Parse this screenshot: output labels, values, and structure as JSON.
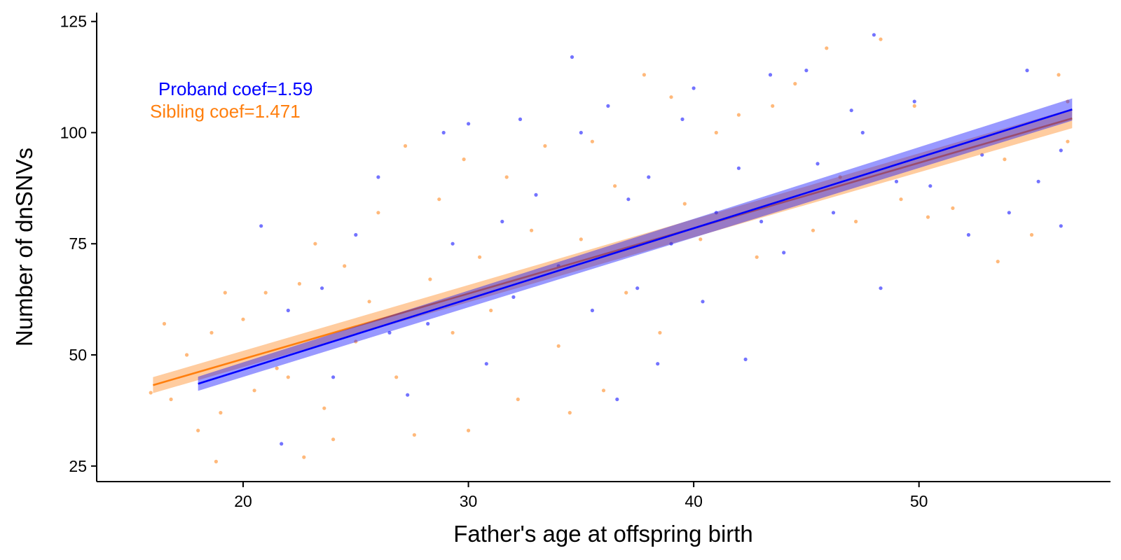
{
  "chart_data": {
    "type": "scatter",
    "title": "",
    "xlabel": "Father's age at offspring birth",
    "ylabel": "Number of dnSNVs",
    "xlim": [
      13.5,
      58.5
    ],
    "ylim": [
      21.5,
      127
    ],
    "x_ticks": [
      20,
      30,
      40,
      50
    ],
    "y_ticks": [
      25,
      50,
      75,
      100,
      125
    ],
    "grid": false,
    "legend": "none",
    "series": [
      {
        "name": "Proband",
        "color": "#0000ff",
        "fit": {
          "x_start": 18,
          "x_end": 56.8,
          "y_start": 43.5,
          "y_end": 105.2,
          "ci_half_width_start": 1.6,
          "ci_half_width_end": 2.5
        },
        "points": [
          [
            20.8,
            79
          ],
          [
            21.7,
            30
          ],
          [
            22,
            60
          ],
          [
            23.5,
            65
          ],
          [
            24,
            45
          ],
          [
            25,
            77
          ],
          [
            26,
            90
          ],
          [
            26.5,
            55
          ],
          [
            27.3,
            41
          ],
          [
            28.2,
            57
          ],
          [
            28.9,
            100
          ],
          [
            29.3,
            75
          ],
          [
            30,
            102
          ],
          [
            30.8,
            48
          ],
          [
            31.5,
            80
          ],
          [
            32,
            63
          ],
          [
            32.3,
            103
          ],
          [
            33,
            86
          ],
          [
            34,
            70
          ],
          [
            34.6,
            117
          ],
          [
            35,
            100
          ],
          [
            35.5,
            60
          ],
          [
            36.2,
            106
          ],
          [
            36.6,
            40
          ],
          [
            37.1,
            85
          ],
          [
            37.5,
            65
          ],
          [
            38,
            90
          ],
          [
            38.4,
            48
          ],
          [
            39,
            75
          ],
          [
            39.5,
            103
          ],
          [
            40,
            110
          ],
          [
            40.4,
            62
          ],
          [
            41,
            82
          ],
          [
            42.3,
            49
          ],
          [
            42,
            92
          ],
          [
            43,
            80
          ],
          [
            43.4,
            113
          ],
          [
            44,
            73
          ],
          [
            45,
            114
          ],
          [
            45.5,
            93
          ],
          [
            46.2,
            82
          ],
          [
            47,
            105
          ],
          [
            47.5,
            100
          ],
          [
            48,
            122
          ],
          [
            48.3,
            65
          ],
          [
            49,
            89
          ],
          [
            49.8,
            107
          ],
          [
            50.5,
            88
          ],
          [
            52.2,
            77
          ],
          [
            52.8,
            95
          ],
          [
            54,
            82
          ],
          [
            54.8,
            114
          ],
          [
            55.3,
            89
          ],
          [
            56.3,
            79
          ],
          [
            56.3,
            96
          ]
        ]
      },
      {
        "name": "Sibling",
        "color": "#ff7f0e",
        "fit": {
          "x_start": 16,
          "x_end": 56.8,
          "y_start": 43.2,
          "y_end": 103.2,
          "ci_half_width_start": 1.8,
          "ci_half_width_end": 2.2
        },
        "points": [
          [
            15.9,
            41.5
          ],
          [
            16.5,
            57
          ],
          [
            16.8,
            40
          ],
          [
            17.5,
            50
          ],
          [
            18,
            33
          ],
          [
            18.6,
            55
          ],
          [
            18.8,
            26
          ],
          [
            19,
            37
          ],
          [
            19.2,
            64
          ],
          [
            20,
            58
          ],
          [
            20.5,
            42
          ],
          [
            21,
            64
          ],
          [
            21.5,
            47
          ],
          [
            22,
            45
          ],
          [
            22.5,
            66
          ],
          [
            22.7,
            27
          ],
          [
            23.2,
            75
          ],
          [
            23.6,
            38
          ],
          [
            24,
            31
          ],
          [
            24.5,
            70
          ],
          [
            25,
            53
          ],
          [
            25.6,
            62
          ],
          [
            26,
            82
          ],
          [
            26.8,
            45
          ],
          [
            27.2,
            97
          ],
          [
            27.6,
            32
          ],
          [
            28.3,
            67
          ],
          [
            28.7,
            85
          ],
          [
            29.3,
            55
          ],
          [
            29.8,
            94
          ],
          [
            30,
            33
          ],
          [
            30.5,
            72
          ],
          [
            31,
            60
          ],
          [
            31.7,
            90
          ],
          [
            32.2,
            40
          ],
          [
            32.8,
            78
          ],
          [
            33.4,
            97
          ],
          [
            34,
            52
          ],
          [
            34.5,
            37
          ],
          [
            35,
            76
          ],
          [
            35.5,
            98
          ],
          [
            36,
            42
          ],
          [
            36.5,
            88
          ],
          [
            37,
            64
          ],
          [
            37.8,
            113
          ],
          [
            38.5,
            55
          ],
          [
            39,
            108
          ],
          [
            39.6,
            84
          ],
          [
            40.3,
            76
          ],
          [
            41,
            100
          ],
          [
            42,
            104
          ],
          [
            42.8,
            72
          ],
          [
            43.5,
            106
          ],
          [
            44.5,
            111
          ],
          [
            45.3,
            78
          ],
          [
            45.9,
            119
          ],
          [
            46.5,
            90
          ],
          [
            47.2,
            80
          ],
          [
            48.3,
            121
          ],
          [
            49.2,
            85
          ],
          [
            49.8,
            106
          ],
          [
            50.4,
            81
          ],
          [
            51.5,
            83
          ],
          [
            53.5,
            71
          ],
          [
            53.8,
            94
          ],
          [
            55,
            77
          ],
          [
            56.2,
            113
          ],
          [
            56.6,
            107
          ],
          [
            56.6,
            98
          ]
        ]
      }
    ],
    "annotations": [
      {
        "text": "Proband coef=1.59",
        "color": "#0000ff"
      },
      {
        "text": "Sibling coef=1.471",
        "color": "#ff7f0e"
      }
    ]
  }
}
